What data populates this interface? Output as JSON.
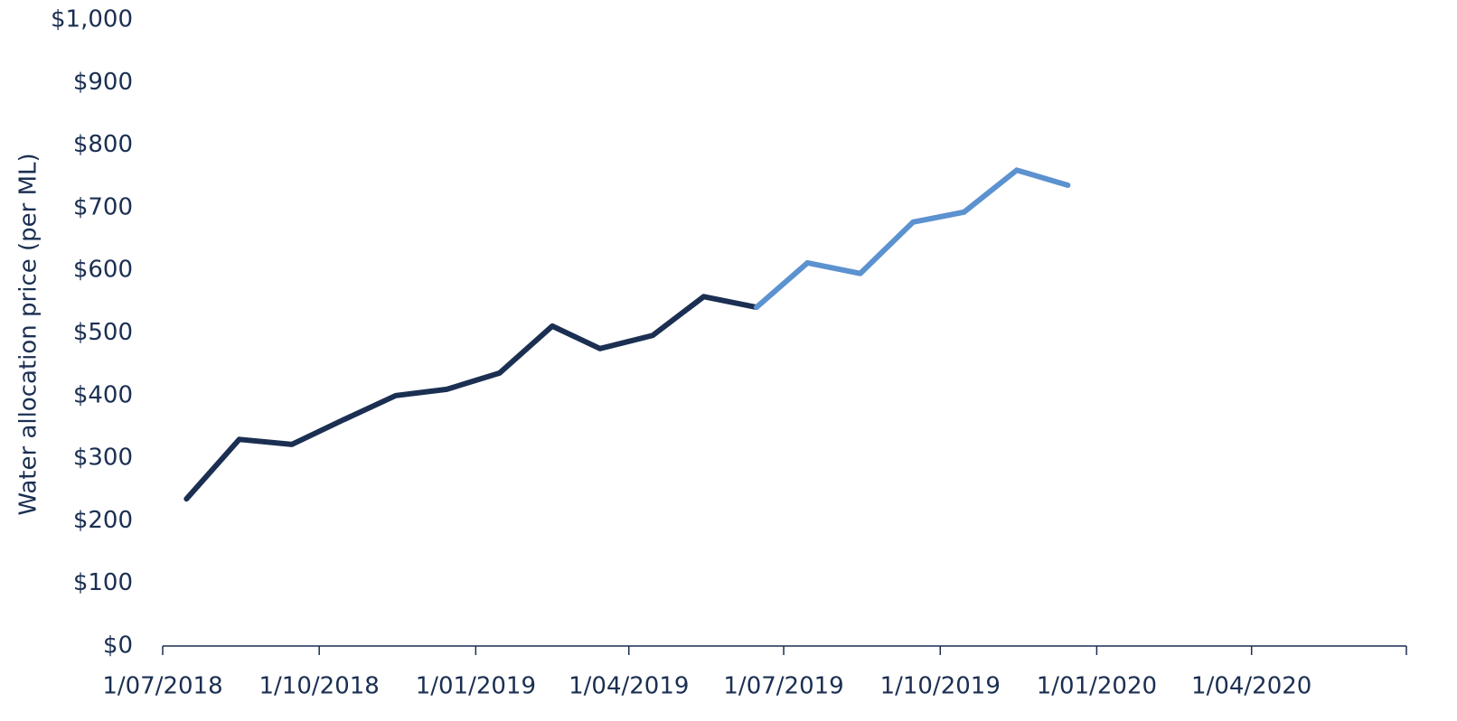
{
  "chart_data": {
    "type": "line",
    "y_label": "Water allocation price (per ML)",
    "x": [
      "2018-07-15",
      "2018-08-15",
      "2018-09-15",
      "2018-10-15",
      "2018-11-15",
      "2018-12-15",
      "2019-01-15",
      "2019-02-15",
      "2019-03-15",
      "2019-04-15",
      "2019-05-15",
      "2019-06-15",
      "2019-07-15",
      "2019-08-15",
      "2019-09-15",
      "2019-10-15",
      "2019-11-15",
      "2019-12-15"
    ],
    "series": [
      {
        "color": "#1b2f52",
        "values": [
          235,
          330,
          322,
          361,
          400,
          410,
          436,
          511,
          475,
          496,
          558,
          541,
          null,
          null,
          null,
          null,
          null,
          null
        ]
      },
      {
        "color": "#5b92cf",
        "values": [
          null,
          null,
          null,
          null,
          null,
          null,
          null,
          null,
          null,
          null,
          null,
          541,
          612,
          595,
          677,
          693,
          760,
          736
        ]
      }
    ],
    "xlim": [
      "2018-07-01",
      "2020-07-01"
    ],
    "xticks": [
      {
        "value": "2018-07-01",
        "label": "1/07/2018"
      },
      {
        "value": "2018-10-01",
        "label": "1/10/2018"
      },
      {
        "value": "2019-01-01",
        "label": "1/01/2019"
      },
      {
        "value": "2019-04-01",
        "label": "1/04/2019"
      },
      {
        "value": "2019-07-01",
        "label": "1/07/2019"
      },
      {
        "value": "2019-10-01",
        "label": "1/10/2019"
      },
      {
        "value": "2020-01-01",
        "label": "1/01/2020"
      },
      {
        "value": "2020-04-01",
        "label": "1/04/2020"
      }
    ],
    "ylim": [
      0,
      1000
    ],
    "yticks": [
      {
        "value": 0,
        "label": "$0"
      },
      {
        "value": 100,
        "label": "$100"
      },
      {
        "value": 200,
        "label": "$200"
      },
      {
        "value": 300,
        "label": "$300"
      },
      {
        "value": 400,
        "label": "$400"
      },
      {
        "value": 500,
        "label": "$500"
      },
      {
        "value": 600,
        "label": "$600"
      },
      {
        "value": 700,
        "label": "$700"
      },
      {
        "value": 800,
        "label": "$800"
      },
      {
        "value": 900,
        "label": "$900"
      },
      {
        "value": 1000,
        "label": "$1,000"
      }
    ],
    "axis_color": "#1b2f52"
  }
}
